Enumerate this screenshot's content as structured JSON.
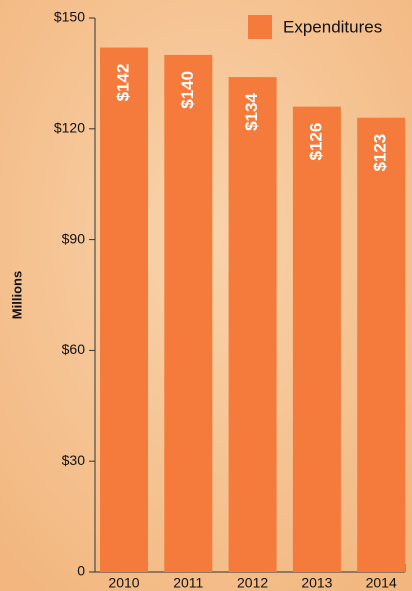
{
  "chart_data": {
    "type": "bar",
    "y_axis_label": "Millions",
    "categories": [
      "2010",
      "2011",
      "2012",
      "2013",
      "2014"
    ],
    "series": [
      {
        "name": "Expenditures",
        "color": "#f47b3c",
        "values": [
          142,
          140,
          134,
          126,
          123
        ],
        "value_labels": [
          "$142",
          "$140",
          "$134",
          "$126",
          "$123"
        ]
      }
    ],
    "ylim": [
      0,
      150
    ],
    "yticks": [
      0,
      {
        "value": 30,
        "label": "$30"
      },
      {
        "value": 60,
        "label": "$60"
      },
      {
        "value": 90,
        "label": "$90"
      },
      {
        "value": 120,
        "label": "$120"
      },
      {
        "value": 150,
        "label": "$150"
      }
    ],
    "legend": "top-right"
  }
}
